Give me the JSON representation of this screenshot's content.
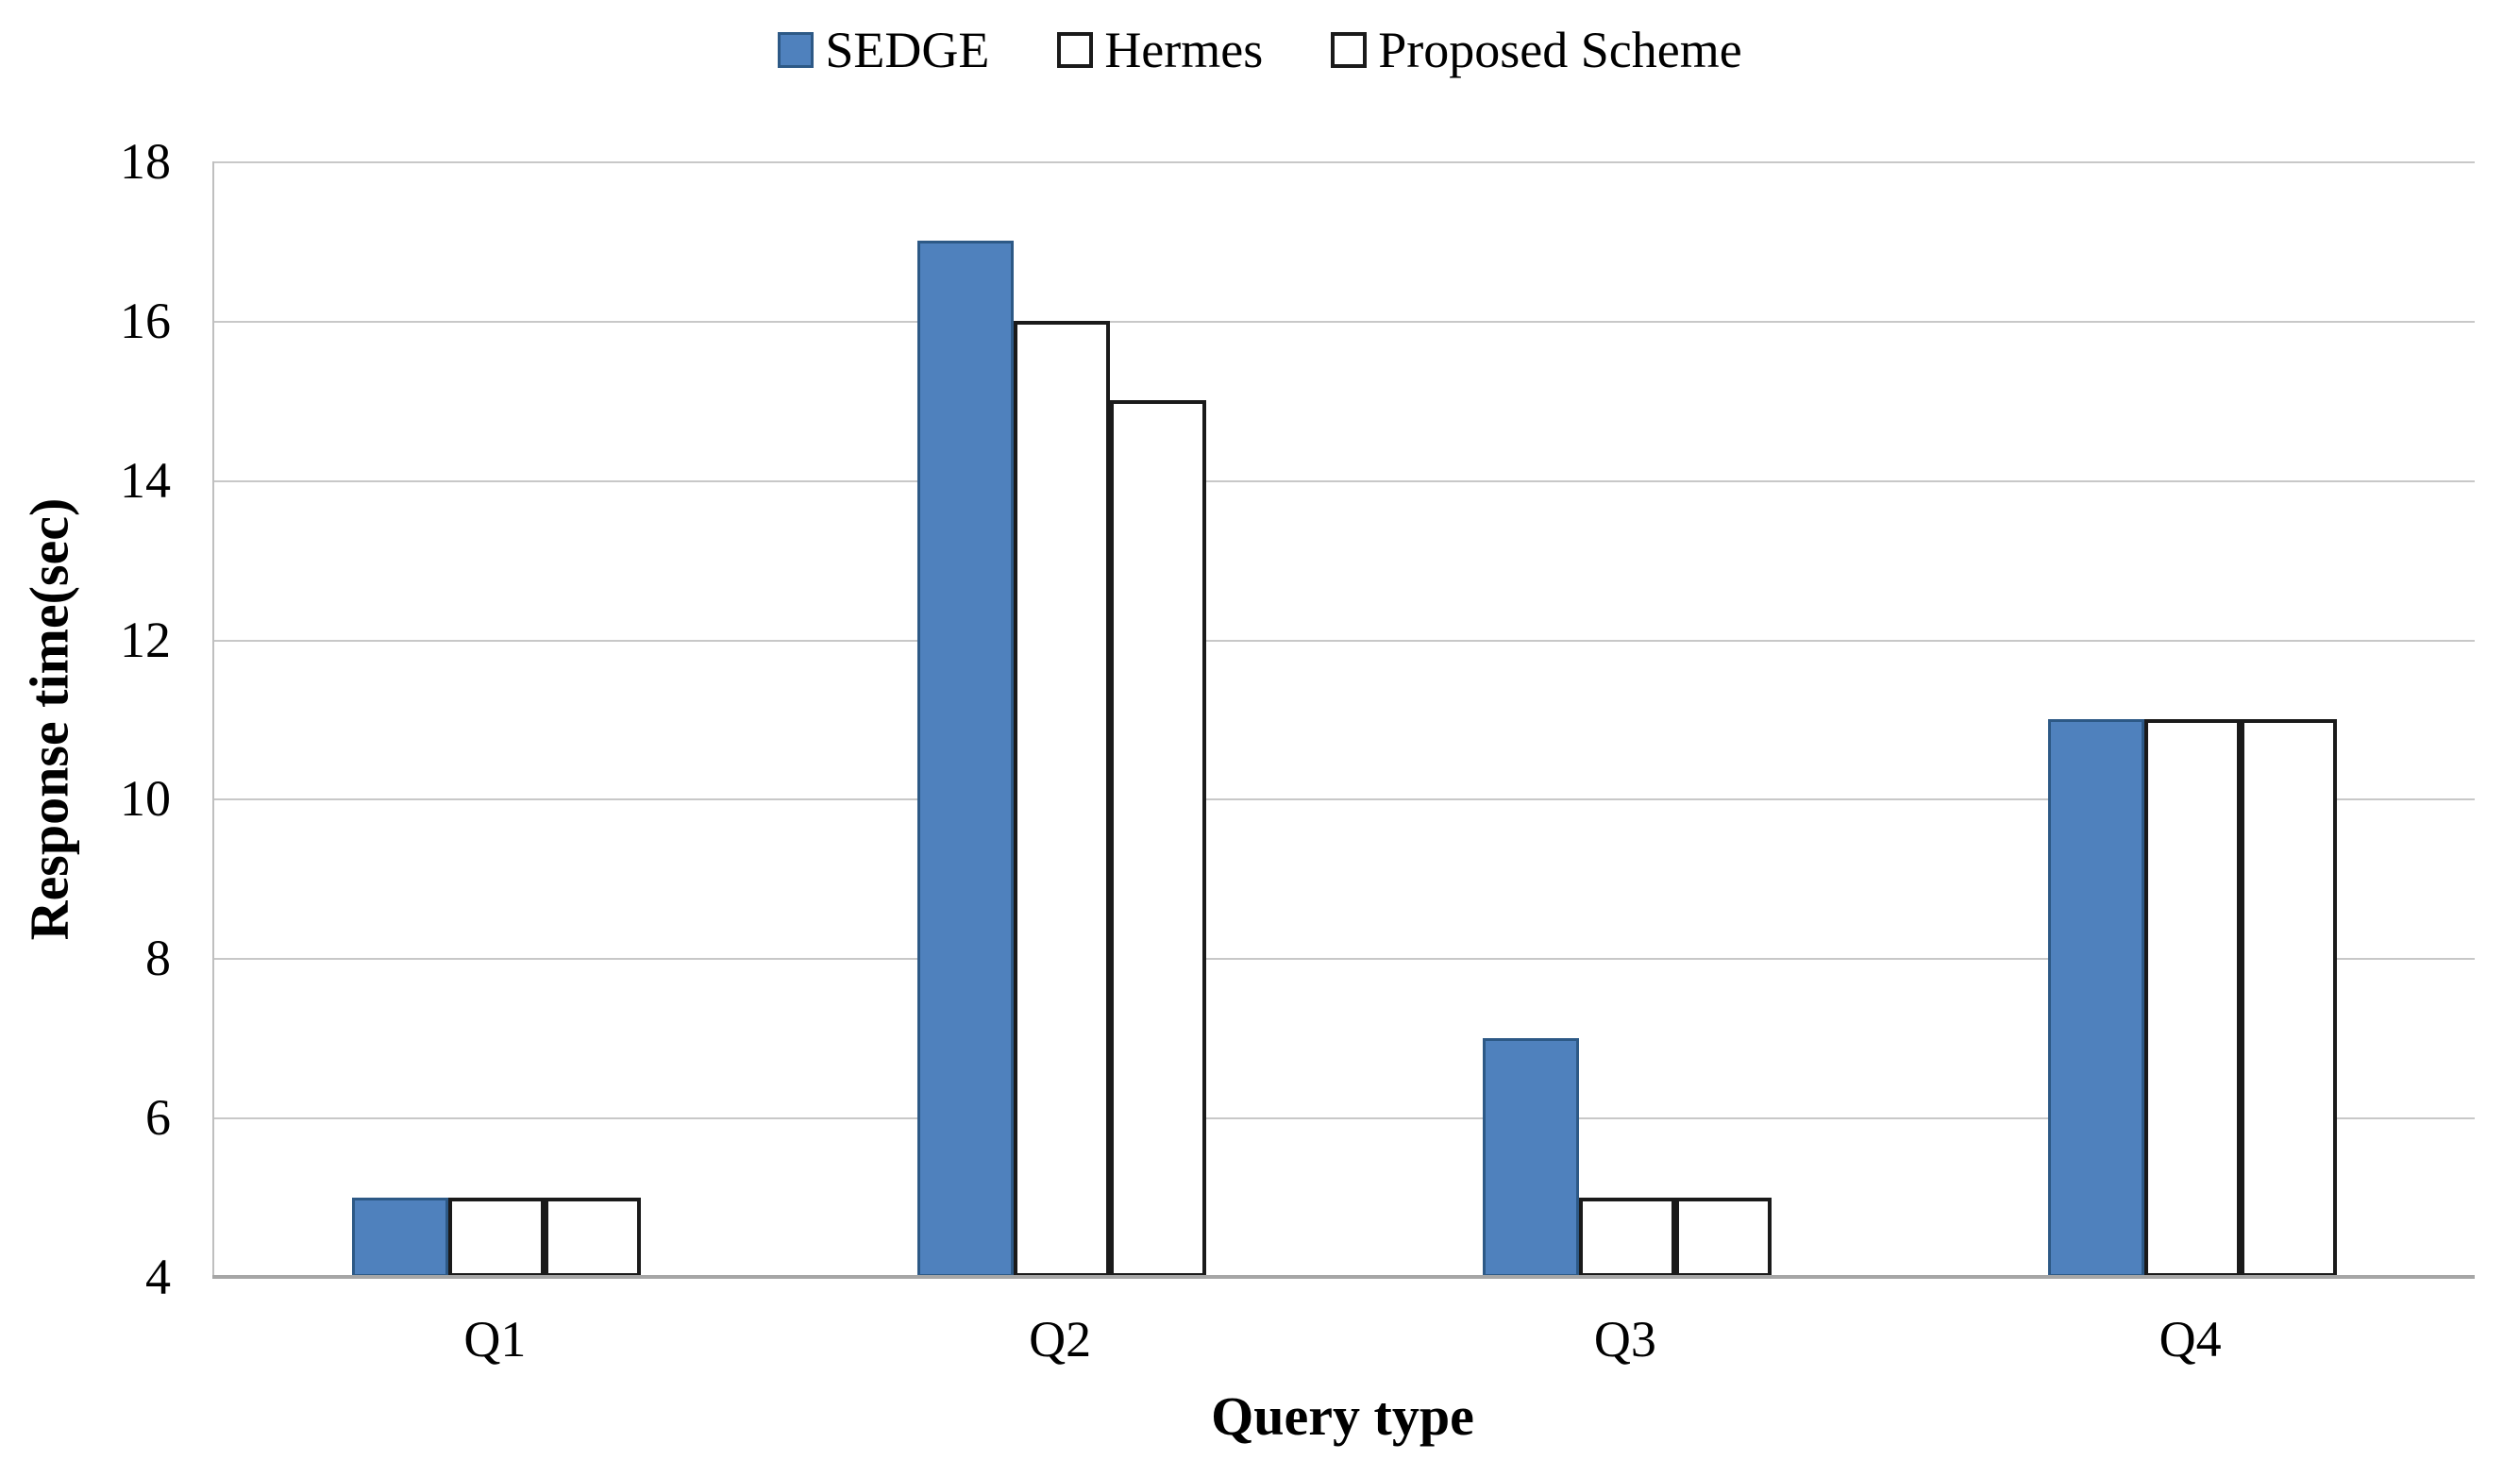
{
  "chart_data": {
    "type": "bar",
    "title": "",
    "categories": [
      "Q1",
      "Q2",
      "Q3",
      "Q4"
    ],
    "series": [
      {
        "name": "SEDGE",
        "values": [
          5,
          17,
          7,
          11
        ],
        "fill": "#4F81BD",
        "border": "#2D5986",
        "pattern": "solid",
        "pattern_color": ""
      },
      {
        "name": "Hermes",
        "values": [
          5,
          16,
          5,
          11
        ],
        "fill": "#FFFFFF",
        "border": "#1A1A1A",
        "pattern": "dots",
        "pattern_color": "#E19C94"
      },
      {
        "name": "Proposed Scheme",
        "values": [
          5,
          15,
          5,
          11
        ],
        "fill": "#FFFFFF",
        "border": "#1A1A1A",
        "pattern": "diagonal-stripes",
        "pattern_color": "#9BBB59"
      }
    ],
    "xlabel": "Query type",
    "ylabel": "Response time(sec)",
    "ylim": [
      4,
      18
    ],
    "yticks": [
      4,
      6,
      8,
      10,
      12,
      14,
      16,
      18
    ],
    "grid": "horizontal-major",
    "legend_position": "top-center",
    "colors": {
      "gridline": "#C8C8C8",
      "axis_line": "#A6A6A6",
      "text": "#000000",
      "background": "#FFFFFF"
    }
  }
}
